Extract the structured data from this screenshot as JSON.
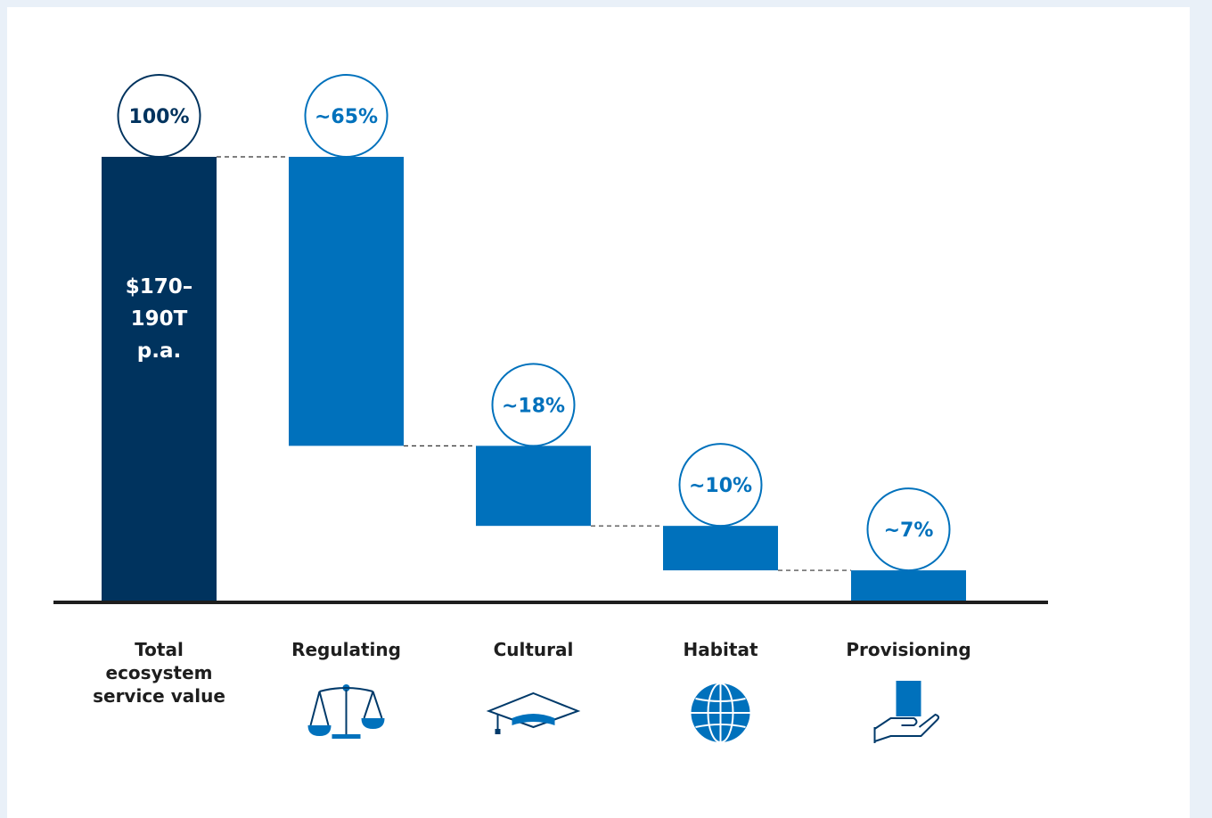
{
  "chart_data": {
    "type": "bar",
    "subtype": "waterfall",
    "unit": "%",
    "ylim": [
      0,
      100
    ],
    "grid": false,
    "legend": "none",
    "categories": [
      "Total ecosystem service value",
      "Regulating",
      "Cultural",
      "Habitat",
      "Provisioning"
    ],
    "category_lines": [
      [
        "Total",
        "ecosystem",
        "service value"
      ],
      [
        "Regulating"
      ],
      [
        "Cultural"
      ],
      [
        "Habitat"
      ],
      [
        "Provisioning"
      ]
    ],
    "values": [
      100,
      65,
      18,
      10,
      7
    ],
    "labels": [
      "100%",
      "~65%",
      "~18%",
      "~10%",
      "~7%"
    ],
    "total_label_lines": [
      "$170–",
      "190T",
      "p.a."
    ],
    "icons": [
      null,
      "balance-scale-icon",
      "graduation-cap-icon",
      "globe-icon",
      "hand-with-box-icon"
    ],
    "colors": {
      "total": "#00335e",
      "component": "#0071bc",
      "axis": "#1e1e1e"
    }
  }
}
